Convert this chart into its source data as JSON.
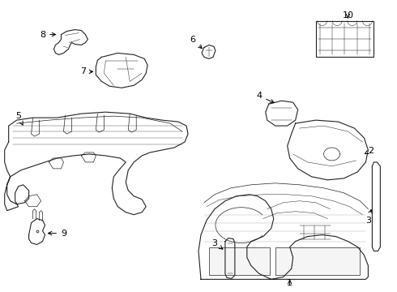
{
  "background_color": "#ffffff",
  "line_color": "#222222",
  "text_color": "#000000",
  "fig_width": 4.9,
  "fig_height": 3.6,
  "dpi": 100,
  "lw_main": 0.8,
  "lw_thin": 0.5,
  "lw_detail": 0.35
}
